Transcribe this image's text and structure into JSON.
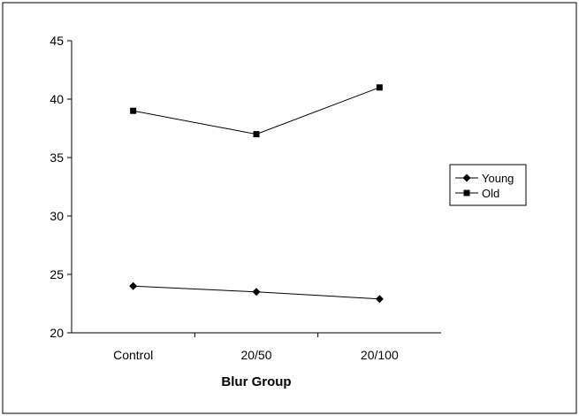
{
  "chart_data": {
    "type": "line",
    "categories": [
      "Control",
      "20/50",
      "20/100"
    ],
    "series": [
      {
        "name": "Young",
        "values": [
          24.0,
          23.5,
          22.9
        ],
        "marker": "diamond",
        "color": "#000000"
      },
      {
        "name": "Old",
        "values": [
          39.0,
          37.0,
          41.0
        ],
        "marker": "square",
        "color": "#000000"
      }
    ],
    "title": "",
    "xlabel": "Blur Group",
    "ylabel": "",
    "ylim": [
      20,
      45
    ],
    "yticks": [
      "20",
      "25",
      "30",
      "35",
      "40",
      "45"
    ],
    "grid": false,
    "legend_position": "right"
  }
}
